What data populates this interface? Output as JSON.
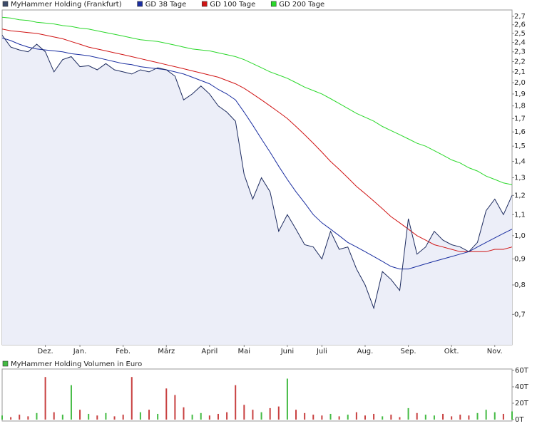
{
  "chart_data": [
    {
      "type": "line",
      "log_scale": true,
      "categories": [
        null,
        null,
        null,
        null,
        null,
        "Dez.",
        null,
        null,
        null,
        "Jan.",
        null,
        null,
        null,
        null,
        "Feb.",
        null,
        null,
        null,
        null,
        "März",
        null,
        null,
        null,
        null,
        "April",
        null,
        null,
        null,
        "Mai",
        null,
        null,
        null,
        null,
        "Juni",
        null,
        null,
        null,
        "Juli",
        null,
        null,
        null,
        null,
        "Aug.",
        null,
        null,
        null,
        null,
        "Sep.",
        null,
        null,
        null,
        null,
        "Okt.",
        null,
        null,
        null,
        null,
        "Nov.",
        null,
        null
      ],
      "series": [
        {
          "name": "MyHammer Holding (Frankfurt)",
          "color": "#1c2a5e",
          "fill": "#eceef8",
          "legend_color": "#3d4b6b",
          "values": [
            2.48,
            2.35,
            2.32,
            2.3,
            2.38,
            2.3,
            2.1,
            2.22,
            2.25,
            2.15,
            2.16,
            2.12,
            2.18,
            2.12,
            2.1,
            2.08,
            2.12,
            2.1,
            2.14,
            2.12,
            2.06,
            1.85,
            1.9,
            1.97,
            1.9,
            1.8,
            1.75,
            1.68,
            1.32,
            1.18,
            1.3,
            1.22,
            1.02,
            1.1,
            1.03,
            0.96,
            0.95,
            0.9,
            1.02,
            0.94,
            0.95,
            0.86,
            0.8,
            0.72,
            0.85,
            0.82,
            0.78,
            1.08,
            0.92,
            0.95,
            1.02,
            0.98,
            0.96,
            0.95,
            0.93,
            0.97,
            1.12,
            1.18,
            1.1,
            1.2
          ]
        },
        {
          "name": "GD 38 Tage",
          "color": "#1a2ea0",
          "values": [
            2.45,
            2.42,
            2.38,
            2.35,
            2.33,
            2.32,
            2.31,
            2.3,
            2.28,
            2.27,
            2.26,
            2.24,
            2.22,
            2.2,
            2.18,
            2.17,
            2.15,
            2.14,
            2.13,
            2.12,
            2.1,
            2.08,
            2.05,
            2.02,
            1.99,
            1.94,
            1.9,
            1.85,
            1.75,
            1.65,
            1.55,
            1.46,
            1.37,
            1.29,
            1.22,
            1.16,
            1.1,
            1.06,
            1.03,
            1.0,
            0.97,
            0.95,
            0.93,
            0.91,
            0.89,
            0.87,
            0.86,
            0.86,
            0.87,
            0.88,
            0.89,
            0.9,
            0.91,
            0.92,
            0.93,
            0.95,
            0.97,
            0.99,
            1.01,
            1.03
          ]
        },
        {
          "name": "GD 100 Tage",
          "color": "#d01414",
          "values": [
            2.55,
            2.53,
            2.52,
            2.51,
            2.5,
            2.48,
            2.46,
            2.44,
            2.41,
            2.38,
            2.35,
            2.33,
            2.31,
            2.29,
            2.27,
            2.25,
            2.23,
            2.21,
            2.19,
            2.17,
            2.15,
            2.13,
            2.11,
            2.09,
            2.07,
            2.05,
            2.02,
            1.99,
            1.95,
            1.9,
            1.85,
            1.8,
            1.75,
            1.7,
            1.64,
            1.58,
            1.52,
            1.46,
            1.4,
            1.35,
            1.3,
            1.25,
            1.21,
            1.17,
            1.13,
            1.09,
            1.06,
            1.03,
            1.0,
            0.98,
            0.96,
            0.95,
            0.94,
            0.93,
            0.93,
            0.93,
            0.93,
            0.94,
            0.94,
            0.95
          ]
        },
        {
          "name": "GD 200 Tage",
          "color": "#2ad82a",
          "values": [
            2.69,
            2.68,
            2.66,
            2.65,
            2.63,
            2.62,
            2.61,
            2.59,
            2.58,
            2.56,
            2.55,
            2.53,
            2.51,
            2.49,
            2.47,
            2.45,
            2.43,
            2.42,
            2.41,
            2.39,
            2.37,
            2.35,
            2.33,
            2.32,
            2.31,
            2.29,
            2.27,
            2.25,
            2.22,
            2.18,
            2.14,
            2.1,
            2.07,
            2.04,
            2.0,
            1.96,
            1.93,
            1.9,
            1.86,
            1.82,
            1.78,
            1.74,
            1.71,
            1.68,
            1.64,
            1.61,
            1.58,
            1.55,
            1.52,
            1.5,
            1.47,
            1.44,
            1.41,
            1.39,
            1.36,
            1.34,
            1.31,
            1.29,
            1.27,
            1.26
          ]
        }
      ],
      "ylim": [
        0.61,
        2.78
      ],
      "yticks": [
        {
          "value": 0.7,
          "label": "0,7"
        },
        {
          "value": 0.8,
          "label": "0,8"
        },
        {
          "value": 0.9,
          "label": "0,9"
        },
        {
          "value": 1.0,
          "label": "1,0"
        },
        {
          "value": 1.1,
          "label": "1,1"
        },
        {
          "value": 1.2,
          "label": "1,2"
        },
        {
          "value": 1.3,
          "label": "1,3"
        },
        {
          "value": 1.4,
          "label": "1,4"
        },
        {
          "value": 1.5,
          "label": "1,5"
        },
        {
          "value": 1.6,
          "label": "1,6"
        },
        {
          "value": 1.7,
          "label": "1,7"
        },
        {
          "value": 1.8,
          "label": "1,8"
        },
        {
          "value": 1.9,
          "label": "1,9"
        },
        {
          "value": 2.0,
          "label": "2,0"
        },
        {
          "value": 2.1,
          "label": "2,1"
        },
        {
          "value": 2.2,
          "label": "2,2"
        },
        {
          "value": 2.3,
          "label": "2,3"
        },
        {
          "value": 2.4,
          "label": "2,4"
        },
        {
          "value": 2.5,
          "label": "2,5"
        },
        {
          "value": 2.6,
          "label": "2,6"
        },
        {
          "value": 2.7,
          "label": "2,7"
        }
      ]
    },
    {
      "type": "bar",
      "series": [
        {
          "name": "MyHammer Holding Volumen in Euro",
          "color": "#44bb44",
          "up_color": "#44bb44",
          "down_color": "#c84040",
          "values": [
            5000,
            3000,
            6000,
            4000,
            8000,
            52000,
            9000,
            6000,
            42000,
            12000,
            7000,
            5000,
            8000,
            4000,
            6000,
            52000,
            9000,
            12000,
            7000,
            38000,
            30000,
            15000,
            6000,
            8000,
            5000,
            7000,
            9000,
            42000,
            18000,
            12000,
            9000,
            14000,
            16000,
            50000,
            12000,
            8000,
            6000,
            5000,
            7000,
            4000,
            6000,
            9000,
            5000,
            7000,
            4000,
            6000,
            3000,
            14000,
            8000,
            6000,
            5000,
            7000,
            4000,
            6000,
            5000,
            8000,
            12000,
            9000,
            7000,
            10000
          ]
        }
      ],
      "ylim": [
        0,
        60000
      ],
      "yticks": [
        {
          "value": 0,
          "label": "0T"
        },
        {
          "value": 20000,
          "label": "20T"
        },
        {
          "value": 40000,
          "label": "40T"
        },
        {
          "value": 60000,
          "label": "60T"
        }
      ]
    }
  ]
}
